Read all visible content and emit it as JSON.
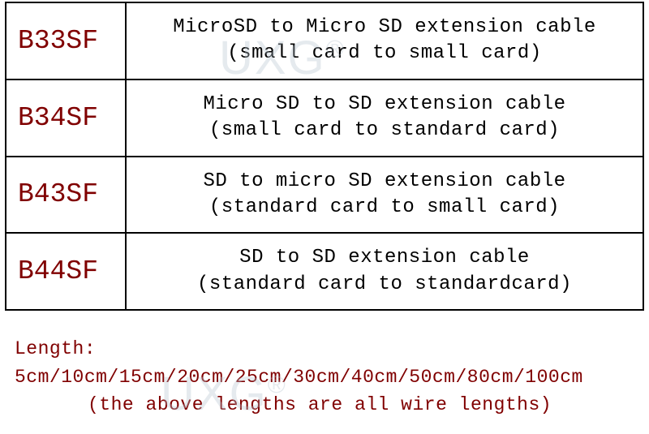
{
  "table": {
    "rows": [
      {
        "code": "B33SF",
        "desc_line1": "MicroSD to Micro SD extension cable",
        "desc_line2": "(small card to small card)"
      },
      {
        "code": "B34SF",
        "desc_line1": "Micro SD to SD extension cable",
        "desc_line2": "(small card to standard card)"
      },
      {
        "code": "B43SF",
        "desc_line1": "SD to micro SD extension cable",
        "desc_line2": "(standard card to small card)"
      },
      {
        "code": "B44SF",
        "desc_line1": "SD to SD extension cable",
        "desc_line2": "(standard card to standardcard)"
      }
    ]
  },
  "footer": {
    "line1": "Length: 5cm/10cm/15cm/20cm/25cm/30cm/40cm/50cm/80cm/100cm",
    "line2": "(the above lengths are all wire lengths)"
  },
  "watermark": {
    "text": "UXG",
    "symbol": "®"
  },
  "colors": {
    "code_text": "#800000",
    "desc_text": "#000000",
    "footer_text": "#800000",
    "border": "#000000",
    "background": "#ffffff",
    "watermark": "rgba(180,195,205,0.35)"
  },
  "typography": {
    "font_family": "Courier New, monospace",
    "code_fontsize": 33,
    "desc_fontsize": 24,
    "footer_fontsize": 23,
    "watermark_fontsize": 58
  }
}
